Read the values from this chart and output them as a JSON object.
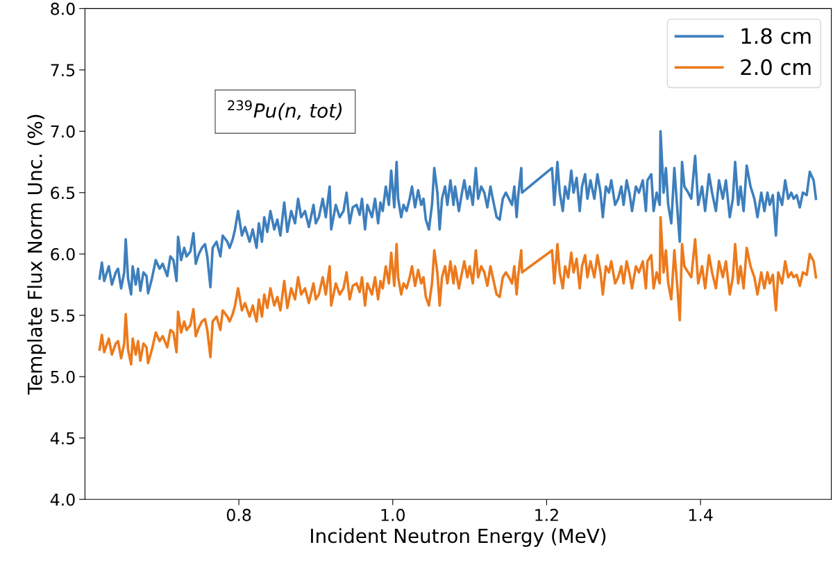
{
  "chart_data": {
    "type": "line",
    "xlabel": "Incident Neutron Energy (MeV)",
    "ylabel": "Template Flux Norm Unc. (%)",
    "annotations": [
      "$^{239}$Pu(n, tot)"
    ],
    "x": [
      0.619,
      0.622,
      0.625,
      0.631,
      0.635,
      0.64,
      0.643,
      0.647,
      0.651,
      0.653,
      0.656,
      0.66,
      0.662,
      0.666,
      0.669,
      0.672,
      0.676,
      0.68,
      0.682,
      0.687,
      0.692,
      0.697,
      0.701,
      0.707,
      0.711,
      0.715,
      0.719,
      0.721,
      0.725,
      0.729,
      0.732,
      0.737,
      0.741,
      0.744,
      0.748,
      0.752,
      0.756,
      0.759,
      0.763,
      0.766,
      0.771,
      0.776,
      0.779,
      0.785,
      0.788,
      0.792,
      0.795,
      0.799,
      0.804,
      0.808,
      0.814,
      0.818,
      0.823,
      0.826,
      0.83,
      0.833,
      0.837,
      0.841,
      0.846,
      0.85,
      0.854,
      0.859,
      0.863,
      0.868,
      0.873,
      0.877,
      0.881,
      0.886,
      0.891,
      0.897,
      0.9,
      0.904,
      0.909,
      0.913,
      0.918,
      0.92,
      0.926,
      0.931,
      0.936,
      0.94,
      0.944,
      0.948,
      0.953,
      0.957,
      0.96,
      0.964,
      0.967,
      0.973,
      0.977,
      0.981,
      0.984,
      0.987,
      0.991,
      0.995,
      0.998,
      1.002,
      1.005,
      1.007,
      1.011,
      1.014,
      1.018,
      1.022,
      1.025,
      1.029,
      1.033,
      1.037,
      1.04,
      1.043,
      1.047,
      1.051,
      1.054,
      1.058,
      1.061,
      1.064,
      1.068,
      1.071,
      1.075,
      1.079,
      1.081,
      1.086,
      1.09,
      1.093,
      1.097,
      1.1,
      1.104,
      1.108,
      1.111,
      1.115,
      1.119,
      1.123,
      1.127,
      1.13,
      1.135,
      1.139,
      1.143,
      1.147,
      1.151,
      1.155,
      1.158,
      1.161,
      1.163,
      1.167,
      1.168,
      1.203,
      1.207,
      1.21,
      1.214,
      1.217,
      1.221,
      1.224,
      1.228,
      1.232,
      1.235,
      1.239,
      1.243,
      1.246,
      1.25,
      1.253,
      1.257,
      1.262,
      1.266,
      1.27,
      1.273,
      1.277,
      1.281,
      1.284,
      1.289,
      1.293,
      1.297,
      1.3,
      1.304,
      1.308,
      1.311,
      1.316,
      1.32,
      1.325,
      1.329,
      1.331,
      1.336,
      1.339,
      1.343,
      1.347,
      1.348,
      1.352,
      1.355,
      1.358,
      1.362,
      1.366,
      1.37,
      1.373,
      1.376,
      1.379,
      1.384,
      1.388,
      1.393,
      1.397,
      1.402,
      1.406,
      1.411,
      1.415,
      1.42,
      1.424,
      1.429,
      1.433,
      1.438,
      1.442,
      1.445,
      1.449,
      1.452,
      1.456,
      1.46,
      1.465,
      1.47,
      1.474,
      1.479,
      1.483,
      1.487,
      1.49,
      1.494,
      1.498,
      1.501,
      1.506,
      1.51,
      1.514,
      1.518,
      1.521,
      1.525,
      1.529,
      1.533,
      1.538,
      1.542,
      1.547,
      1.55
    ],
    "series": [
      {
        "name": "1.8 cm",
        "color": "#3d7fbd",
        "values": [
          5.8,
          5.93,
          5.78,
          5.9,
          5.75,
          5.85,
          5.88,
          5.72,
          5.85,
          6.12,
          5.8,
          5.67,
          5.9,
          5.75,
          5.88,
          5.7,
          5.85,
          5.82,
          5.68,
          5.8,
          5.95,
          5.88,
          5.92,
          5.82,
          5.98,
          5.95,
          5.78,
          6.14,
          5.95,
          6.05,
          5.98,
          6.02,
          6.17,
          5.92,
          6.0,
          6.05,
          6.08,
          5.98,
          5.73,
          6.05,
          6.1,
          5.98,
          6.15,
          6.1,
          6.05,
          6.12,
          6.2,
          6.35,
          6.15,
          6.22,
          6.1,
          6.2,
          6.05,
          6.25,
          6.1,
          6.3,
          6.18,
          6.35,
          6.2,
          6.28,
          6.15,
          6.42,
          6.18,
          6.35,
          6.25,
          6.45,
          6.3,
          6.35,
          6.22,
          6.4,
          6.25,
          6.3,
          6.45,
          6.3,
          6.55,
          6.2,
          6.4,
          6.3,
          6.35,
          6.5,
          6.25,
          6.38,
          6.4,
          6.32,
          6.45,
          6.2,
          6.4,
          6.3,
          6.45,
          6.25,
          6.42,
          6.35,
          6.55,
          6.4,
          6.68,
          6.38,
          6.75,
          6.45,
          6.3,
          6.4,
          6.35,
          6.45,
          6.55,
          6.38,
          6.52,
          6.4,
          6.45,
          6.28,
          6.2,
          6.4,
          6.7,
          6.5,
          6.2,
          6.45,
          6.55,
          6.4,
          6.6,
          6.4,
          6.55,
          6.35,
          6.5,
          6.6,
          6.45,
          6.55,
          6.4,
          6.7,
          6.45,
          6.55,
          6.5,
          6.38,
          6.55,
          6.45,
          6.3,
          6.28,
          6.45,
          6.5,
          6.45,
          6.4,
          6.55,
          6.3,
          6.47,
          6.7,
          6.5,
          6.68,
          6.7,
          6.4,
          6.75,
          6.5,
          6.35,
          6.55,
          6.45,
          6.68,
          6.5,
          6.62,
          6.35,
          6.55,
          6.65,
          6.45,
          6.6,
          6.45,
          6.65,
          6.5,
          6.3,
          6.55,
          6.5,
          6.6,
          6.4,
          6.45,
          6.55,
          6.4,
          6.6,
          6.48,
          6.35,
          6.55,
          6.5,
          6.6,
          6.35,
          6.6,
          6.65,
          6.35,
          6.5,
          6.4,
          7.0,
          6.5,
          6.7,
          6.4,
          6.25,
          6.7,
          6.35,
          6.1,
          6.75,
          6.55,
          6.5,
          6.45,
          6.8,
          6.4,
          6.55,
          6.35,
          6.65,
          6.5,
          6.35,
          6.6,
          6.45,
          6.6,
          6.3,
          6.45,
          6.75,
          6.4,
          6.55,
          6.35,
          6.72,
          6.55,
          6.45,
          6.3,
          6.5,
          6.35,
          6.5,
          6.4,
          6.48,
          6.15,
          6.5,
          6.4,
          6.6,
          6.45,
          6.5,
          6.45,
          6.48,
          6.38,
          6.5,
          6.48,
          6.67,
          6.6,
          6.45
        ]
      },
      {
        "name": "2.0 cm",
        "color": "#ec7a1c",
        "values": [
          5.22,
          5.34,
          5.2,
          5.31,
          5.18,
          5.27,
          5.29,
          5.15,
          5.27,
          5.51,
          5.22,
          5.1,
          5.31,
          5.18,
          5.29,
          5.13,
          5.27,
          5.24,
          5.11,
          5.22,
          5.36,
          5.29,
          5.33,
          5.24,
          5.38,
          5.36,
          5.2,
          5.53,
          5.36,
          5.45,
          5.38,
          5.42,
          5.55,
          5.33,
          5.4,
          5.45,
          5.47,
          5.38,
          5.16,
          5.45,
          5.49,
          5.38,
          5.54,
          5.49,
          5.45,
          5.51,
          5.58,
          5.72,
          5.54,
          5.6,
          5.49,
          5.58,
          5.45,
          5.63,
          5.49,
          5.67,
          5.56,
          5.72,
          5.58,
          5.65,
          5.54,
          5.78,
          5.56,
          5.72,
          5.63,
          5.81,
          5.67,
          5.72,
          5.6,
          5.76,
          5.63,
          5.67,
          5.81,
          5.67,
          5.9,
          5.58,
          5.76,
          5.67,
          5.72,
          5.85,
          5.63,
          5.74,
          5.76,
          5.69,
          5.81,
          5.58,
          5.76,
          5.67,
          5.81,
          5.63,
          5.78,
          5.72,
          5.9,
          5.76,
          6.01,
          5.74,
          6.08,
          5.81,
          5.67,
          5.76,
          5.72,
          5.81,
          5.9,
          5.74,
          5.87,
          5.76,
          5.81,
          5.65,
          5.58,
          5.76,
          6.03,
          5.85,
          5.58,
          5.81,
          5.9,
          5.76,
          5.94,
          5.76,
          5.9,
          5.72,
          5.85,
          5.94,
          5.81,
          5.9,
          5.76,
          6.03,
          5.81,
          5.9,
          5.85,
          5.74,
          5.9,
          5.81,
          5.67,
          5.65,
          5.81,
          5.85,
          5.81,
          5.76,
          5.9,
          5.67,
          5.82,
          6.03,
          5.85,
          6.01,
          6.03,
          5.76,
          6.08,
          5.85,
          5.72,
          5.9,
          5.81,
          6.01,
          5.85,
          5.96,
          5.72,
          5.9,
          5.99,
          5.81,
          5.94,
          5.81,
          5.99,
          5.85,
          5.67,
          5.9,
          5.85,
          5.94,
          5.76,
          5.81,
          5.9,
          5.76,
          5.94,
          5.83,
          5.72,
          5.9,
          5.85,
          5.94,
          5.72,
          5.94,
          5.99,
          5.72,
          5.85,
          5.76,
          6.3,
          5.85,
          6.03,
          5.76,
          5.63,
          6.03,
          5.72,
          5.46,
          6.08,
          5.9,
          5.85,
          5.81,
          6.12,
          5.76,
          5.9,
          5.72,
          5.99,
          5.85,
          5.72,
          5.94,
          5.81,
          5.94,
          5.67,
          5.81,
          6.08,
          5.76,
          5.9,
          5.72,
          6.05,
          5.9,
          5.81,
          5.67,
          5.85,
          5.72,
          5.85,
          5.76,
          5.83,
          5.54,
          5.85,
          5.76,
          5.94,
          5.81,
          5.85,
          5.81,
          5.83,
          5.74,
          5.85,
          5.83,
          6.0,
          5.94,
          5.81
        ]
      }
    ],
    "xlim": [
      0.6,
      1.57
    ],
    "xticks": [
      0.8,
      {
        "value": 1.0,
        "label": "1.0"
      },
      1.2,
      1.4
    ],
    "ylim": [
      4.0,
      8.0
    ],
    "yticks": [
      {
        "value": 4.0,
        "label": "4.0"
      },
      4.5,
      {
        "value": 5.0,
        "label": "5.0"
      },
      5.5,
      {
        "value": 6.0,
        "label": "6.0"
      },
      6.5,
      {
        "value": 7.0,
        "label": "7.0"
      },
      7.5,
      {
        "value": 8.0,
        "label": "8.0"
      }
    ],
    "legend": "top right",
    "grid": false
  }
}
